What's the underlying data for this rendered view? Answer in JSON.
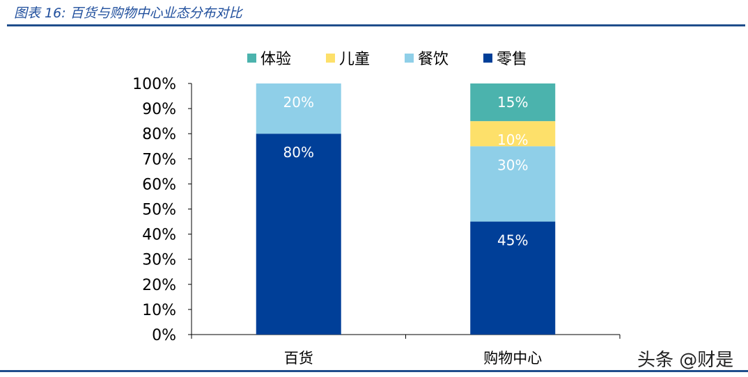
{
  "title": "图表 16:  百货与购物中心业态分布对比",
  "watermark": "头条 @财是",
  "chart_data": {
    "type": "bar",
    "stacked": true,
    "categories": [
      "百货",
      "购物中心"
    ],
    "series": [
      {
        "name": "零售",
        "color": "#003f98",
        "values": [
          80,
          45
        ],
        "labels": [
          "80%",
          "45%"
        ]
      },
      {
        "name": "餐饮",
        "color": "#8fcfe8",
        "values": [
          20,
          30
        ],
        "labels": [
          "20%",
          "30%"
        ]
      },
      {
        "name": "儿童",
        "color": "#fde06a",
        "values": [
          0,
          10
        ],
        "labels": [
          "",
          "10%"
        ]
      },
      {
        "name": "体验",
        "color": "#4bb3ad",
        "values": [
          0,
          15
        ],
        "labels": [
          "",
          "15%"
        ]
      }
    ],
    "legend_order": [
      "体验",
      "儿童",
      "餐饮",
      "零售"
    ],
    "legend_position": "top",
    "ylim": [
      0,
      100
    ],
    "yticks": [
      "0%",
      "10%",
      "20%",
      "30%",
      "40%",
      "50%",
      "60%",
      "70%",
      "80%",
      "90%",
      "100%"
    ],
    "grid": false
  }
}
